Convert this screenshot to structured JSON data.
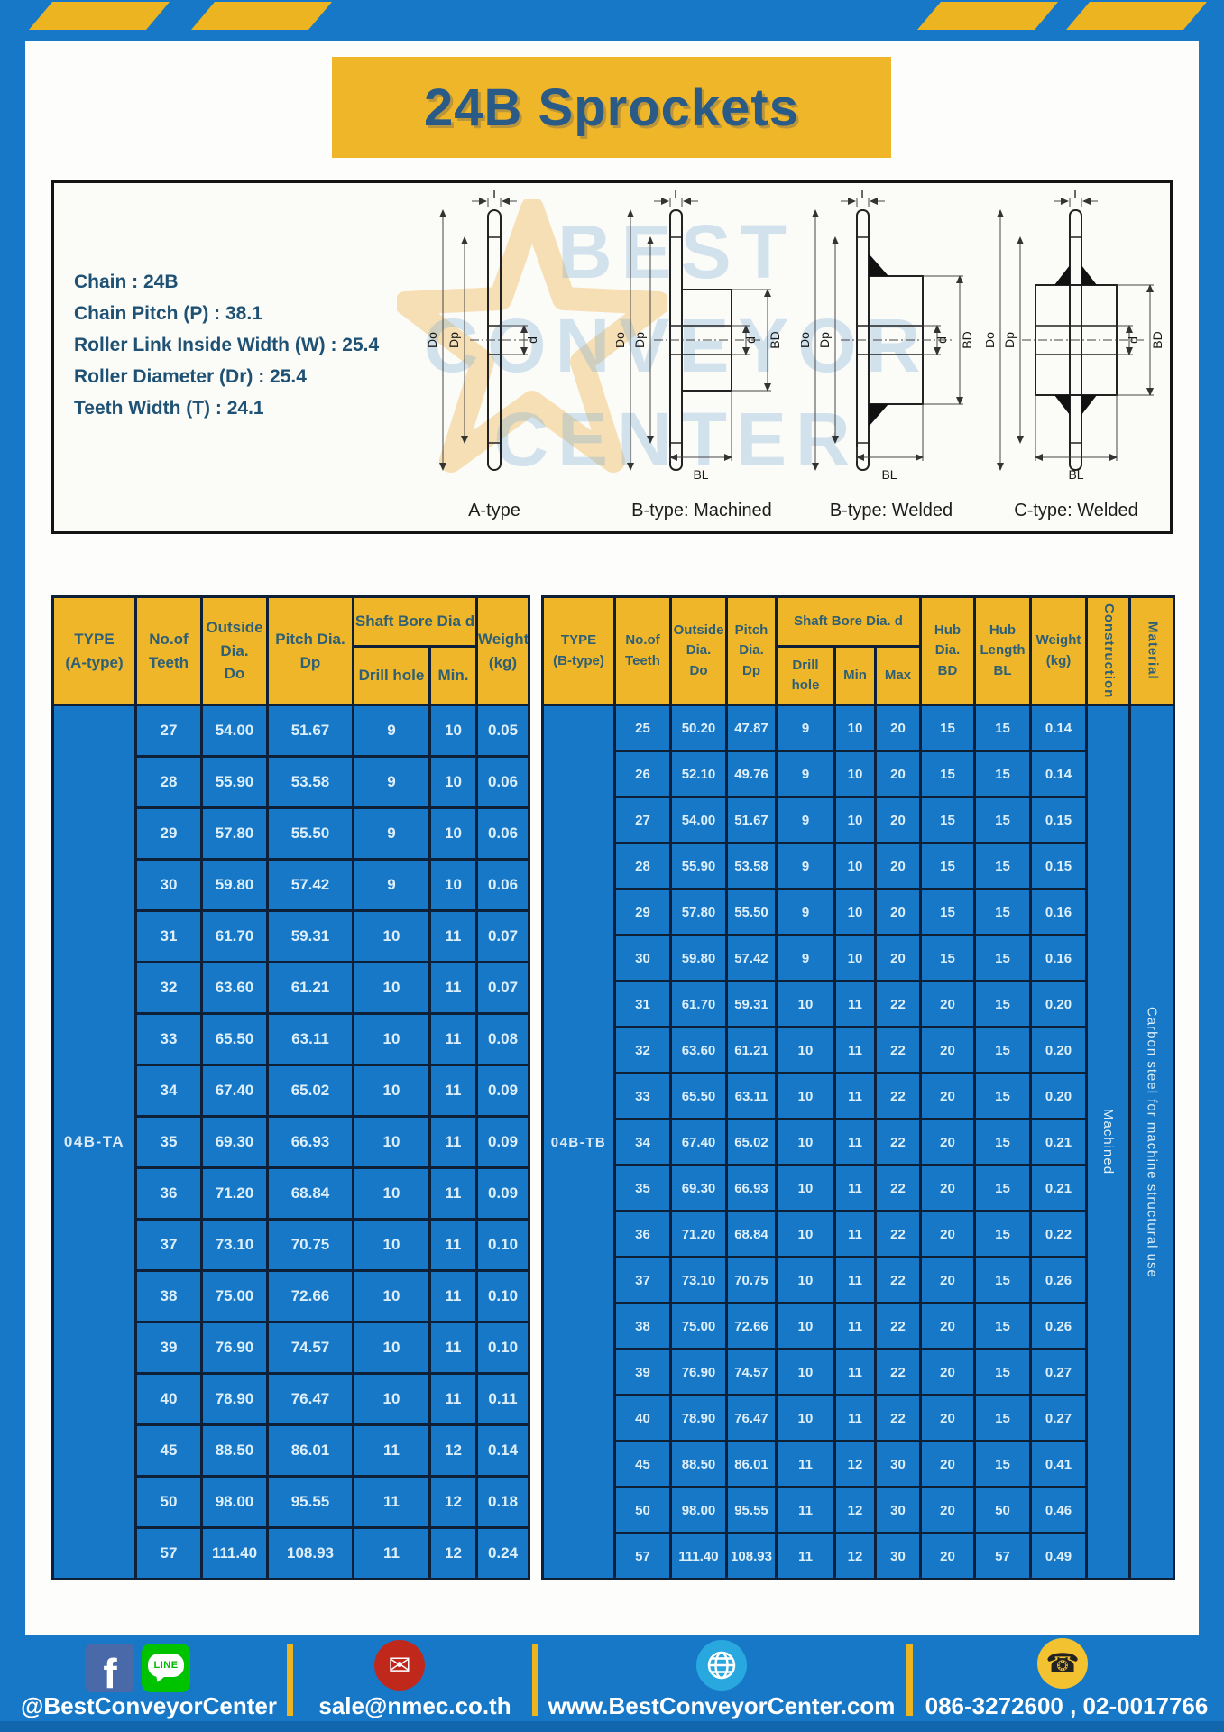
{
  "page": {
    "title": "24B Sprockets"
  },
  "colors": {
    "frame_blue": "#1778C8",
    "stripe_yellow": "#EDB421",
    "header_yellow": "#EFB62A",
    "cell_blue": "#1878C8",
    "grid_navy": "#0D2038",
    "navy_text": "#2A5A86",
    "cell_text": "#DCEFFA"
  },
  "diagram": {
    "specs": [
      "Chain  : 24B",
      "Chain Pitch (P)  :  38.1",
      "Roller Link Inside Width (W)  :  25.4",
      "Roller Diameter (Dr)  : 25.4",
      "Teeth Width (T)  :  24.1"
    ],
    "captions": [
      "A-type",
      "B-type: Machined",
      "B-type: Welded",
      "C-type: Welded"
    ],
    "dims": {
      "t": "T",
      "doo": "Do",
      "dp": "Dp",
      "d": "d",
      "bd": "BD",
      "bl": "BL"
    },
    "watermark": "BEST\nCONVEYOR\nCENTER"
  },
  "table_a": {
    "type_label": "04B-TA",
    "headers": {
      "type": "TYPE\n(A-type)",
      "teeth": "No.of\nTeeth",
      "doo": "Outside\nDia.\nDo",
      "dp": "Pitch Dia.\nDp",
      "shaft_bore": "Shaft Bore Dia d",
      "drill": "Drill hole",
      "min": "Min.",
      "weight": "Weight\n(kg)"
    },
    "rows": [
      [
        "27",
        "54.00",
        "51.67",
        "9",
        "10",
        "0.05"
      ],
      [
        "28",
        "55.90",
        "53.58",
        "9",
        "10",
        "0.06"
      ],
      [
        "29",
        "57.80",
        "55.50",
        "9",
        "10",
        "0.06"
      ],
      [
        "30",
        "59.80",
        "57.42",
        "9",
        "10",
        "0.06"
      ],
      [
        "31",
        "61.70",
        "59.31",
        "10",
        "11",
        "0.07"
      ],
      [
        "32",
        "63.60",
        "61.21",
        "10",
        "11",
        "0.07"
      ],
      [
        "33",
        "65.50",
        "63.11",
        "10",
        "11",
        "0.08"
      ],
      [
        "34",
        "67.40",
        "65.02",
        "10",
        "11",
        "0.09"
      ],
      [
        "35",
        "69.30",
        "66.93",
        "10",
        "11",
        "0.09"
      ],
      [
        "36",
        "71.20",
        "68.84",
        "10",
        "11",
        "0.09"
      ],
      [
        "37",
        "73.10",
        "70.75",
        "10",
        "11",
        "0.10"
      ],
      [
        "38",
        "75.00",
        "72.66",
        "10",
        "11",
        "0.10"
      ],
      [
        "39",
        "76.90",
        "74.57",
        "10",
        "11",
        "0.10"
      ],
      [
        "40",
        "78.90",
        "76.47",
        "10",
        "11",
        "0.11"
      ],
      [
        "45",
        "88.50",
        "86.01",
        "11",
        "12",
        "0.14"
      ],
      [
        "50",
        "98.00",
        "95.55",
        "11",
        "12",
        "0.18"
      ],
      [
        "57",
        "111.40",
        "108.93",
        "11",
        "12",
        "0.24"
      ]
    ]
  },
  "table_b": {
    "type_label": "04B-TB",
    "construction": "Machined",
    "material": "Carbon steel for machine structural use",
    "headers": {
      "type": "TYPE\n(B-type)",
      "teeth": "No.of\nTeeth",
      "doo": "Outside\nDia.\nDo",
      "dp": "Pitch\nDia.\nDp",
      "shaft_bore": "Shaft Bore Dia.  d",
      "drill": "Drill hole",
      "min": "Min",
      "max": "Max",
      "bd": "Hub\nDia.\nBD",
      "bl": "Hub\nLength\nBL",
      "weight": "Weight\n(kg)",
      "construction": "Construction",
      "material": "Material"
    },
    "rows": [
      [
        "25",
        "50.20",
        "47.87",
        "9",
        "10",
        "20",
        "15",
        "15",
        "0.14"
      ],
      [
        "26",
        "52.10",
        "49.76",
        "9",
        "10",
        "20",
        "15",
        "15",
        "0.14"
      ],
      [
        "27",
        "54.00",
        "51.67",
        "9",
        "10",
        "20",
        "15",
        "15",
        "0.15"
      ],
      [
        "28",
        "55.90",
        "53.58",
        "9",
        "10",
        "20",
        "15",
        "15",
        "0.15"
      ],
      [
        "29",
        "57.80",
        "55.50",
        "9",
        "10",
        "20",
        "15",
        "15",
        "0.16"
      ],
      [
        "30",
        "59.80",
        "57.42",
        "9",
        "10",
        "20",
        "15",
        "15",
        "0.16"
      ],
      [
        "31",
        "61.70",
        "59.31",
        "10",
        "11",
        "22",
        "20",
        "15",
        "0.20"
      ],
      [
        "32",
        "63.60",
        "61.21",
        "10",
        "11",
        "22",
        "20",
        "15",
        "0.20"
      ],
      [
        "33",
        "65.50",
        "63.11",
        "10",
        "11",
        "22",
        "20",
        "15",
        "0.20"
      ],
      [
        "34",
        "67.40",
        "65.02",
        "10",
        "11",
        "22",
        "20",
        "15",
        "0.21"
      ],
      [
        "35",
        "69.30",
        "66.93",
        "10",
        "11",
        "22",
        "20",
        "15",
        "0.21"
      ],
      [
        "36",
        "71.20",
        "68.84",
        "10",
        "11",
        "22",
        "20",
        "15",
        "0.22"
      ],
      [
        "37",
        "73.10",
        "70.75",
        "10",
        "11",
        "22",
        "20",
        "15",
        "0.26"
      ],
      [
        "38",
        "75.00",
        "72.66",
        "10",
        "11",
        "22",
        "20",
        "15",
        "0.26"
      ],
      [
        "39",
        "76.90",
        "74.57",
        "10",
        "11",
        "22",
        "20",
        "15",
        "0.27"
      ],
      [
        "40",
        "78.90",
        "76.47",
        "10",
        "11",
        "22",
        "20",
        "15",
        "0.27"
      ],
      [
        "45",
        "88.50",
        "86.01",
        "11",
        "12",
        "30",
        "20",
        "15",
        "0.41"
      ],
      [
        "50",
        "98.00",
        "95.55",
        "11",
        "12",
        "30",
        "20",
        "50",
        "0.46"
      ],
      [
        "57",
        "111.40",
        "108.93",
        "11",
        "12",
        "30",
        "20",
        "57",
        "0.49"
      ]
    ]
  },
  "footer": {
    "social": "@BestConveyorCenter",
    "email": "sale@nmec.co.th",
    "website": "www.BestConveyorCenter.com",
    "phone": "086-3272600 , 02-0017766"
  }
}
